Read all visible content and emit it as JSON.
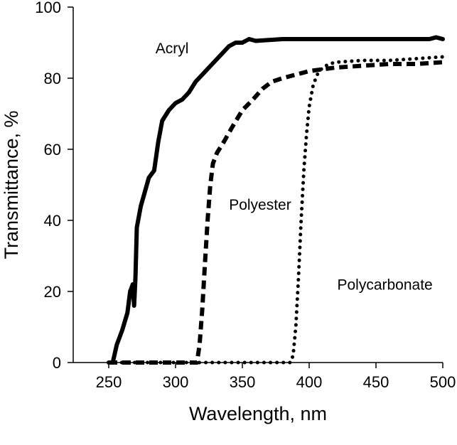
{
  "chart_data": {
    "type": "line",
    "title": "",
    "xlabel": "Wavelength, nm",
    "ylabel": "Transmittance, %",
    "xlim": [
      250,
      500
    ],
    "ylim": [
      0,
      100
    ],
    "xticks": [
      250,
      300,
      350,
      400,
      450,
      500
    ],
    "yticks": [
      0,
      20,
      40,
      60,
      80,
      100
    ],
    "grid": false,
    "legend": "none",
    "series": [
      {
        "name": "Acryl",
        "style": "solid",
        "color": "#000000",
        "points": [
          [
            250,
            0
          ],
          [
            253,
            0
          ],
          [
            256,
            5
          ],
          [
            260,
            9
          ],
          [
            264,
            14
          ],
          [
            266,
            20
          ],
          [
            268,
            22
          ],
          [
            269,
            16
          ],
          [
            270,
            24
          ],
          [
            271,
            38
          ],
          [
            274,
            44
          ],
          [
            277,
            48
          ],
          [
            280,
            52
          ],
          [
            284,
            54
          ],
          [
            287,
            62
          ],
          [
            290,
            68
          ],
          [
            295,
            71
          ],
          [
            300,
            73
          ],
          [
            305,
            74
          ],
          [
            310,
            76
          ],
          [
            315,
            79
          ],
          [
            320,
            81
          ],
          [
            325,
            83
          ],
          [
            330,
            85
          ],
          [
            335,
            87
          ],
          [
            340,
            89
          ],
          [
            345,
            90
          ],
          [
            350,
            90
          ],
          [
            355,
            91
          ],
          [
            360,
            90.5
          ],
          [
            380,
            91
          ],
          [
            400,
            91
          ],
          [
            420,
            91
          ],
          [
            440,
            91
          ],
          [
            460,
            91
          ],
          [
            480,
            91
          ],
          [
            490,
            91
          ],
          [
            495,
            91.5
          ],
          [
            500,
            91
          ]
        ]
      },
      {
        "name": "Polyester",
        "style": "dashed",
        "color": "#000000",
        "points": [
          [
            250,
            0
          ],
          [
            280,
            0
          ],
          [
            300,
            0
          ],
          [
            313,
            0
          ],
          [
            316,
            0
          ],
          [
            318,
            5
          ],
          [
            320,
            15
          ],
          [
            322,
            28
          ],
          [
            324,
            40
          ],
          [
            326,
            50
          ],
          [
            328,
            56
          ],
          [
            331,
            59
          ],
          [
            336,
            62
          ],
          [
            342,
            66
          ],
          [
            350,
            71
          ],
          [
            358,
            74
          ],
          [
            365,
            77
          ],
          [
            372,
            79
          ],
          [
            380,
            80
          ],
          [
            390,
            81
          ],
          [
            400,
            82
          ],
          [
            410,
            82.5
          ],
          [
            420,
            83
          ],
          [
            440,
            83.5
          ],
          [
            460,
            84
          ],
          [
            480,
            84
          ],
          [
            500,
            84.5
          ]
        ]
      },
      {
        "name": "Polycarbonate",
        "style": "dotted",
        "color": "#000000",
        "points": [
          [
            250,
            0
          ],
          [
            300,
            0
          ],
          [
            350,
            0
          ],
          [
            380,
            0
          ],
          [
            386,
            0
          ],
          [
            388,
            2
          ],
          [
            390,
            10
          ],
          [
            392,
            24
          ],
          [
            394,
            40
          ],
          [
            396,
            54
          ],
          [
            398,
            64
          ],
          [
            400,
            72
          ],
          [
            403,
            78
          ],
          [
            406,
            81
          ],
          [
            410,
            83
          ],
          [
            415,
            84
          ],
          [
            420,
            84.5
          ],
          [
            440,
            85
          ],
          [
            460,
            85
          ],
          [
            480,
            85.5
          ],
          [
            500,
            86
          ]
        ]
      }
    ],
    "annotations": [
      {
        "text": "Acryl",
        "x": 285,
        "y": 87
      },
      {
        "text": "Polyester",
        "x": 340,
        "y": 43
      },
      {
        "text": "Polycarbonate",
        "x": 421,
        "y": 20.5
      }
    ]
  }
}
